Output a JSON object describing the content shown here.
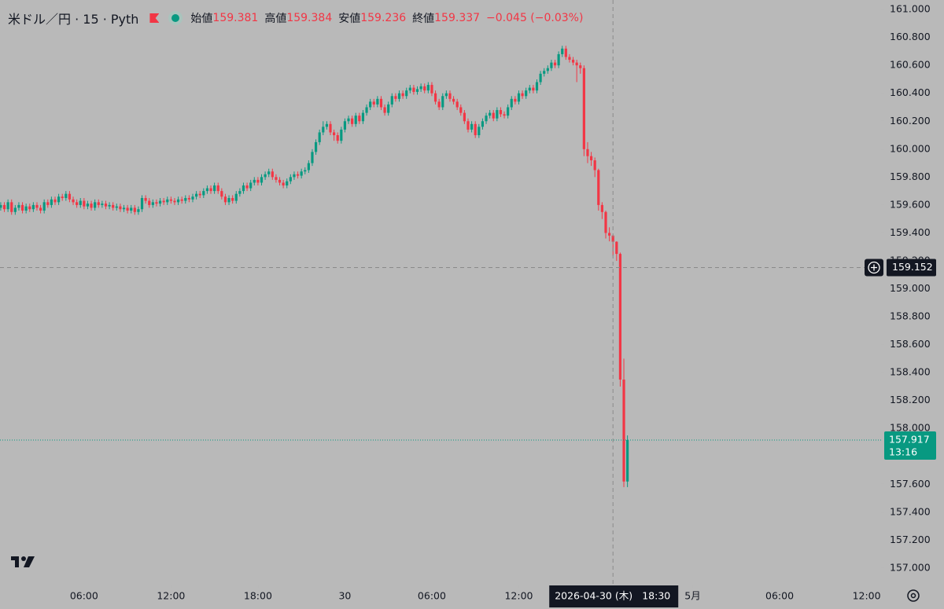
{
  "chart_data": {
    "type": "candlestick",
    "title": "米ドル／円 · 15 · Pyth",
    "ohlc_labels": {
      "open": "始値",
      "high": "高値",
      "low": "安値",
      "close": "終値"
    },
    "change": "−0.045 (−0.03%)",
    "up_color": "#089981",
    "down_color": "#f23645",
    "x": [
      0.25,
      0.5,
      0.75,
      1,
      1.25,
      1.5,
      1.75,
      2,
      2.25,
      2.5,
      2.75,
      3,
      3.25,
      3.5,
      3.75,
      4,
      4.25,
      4.5,
      4.75,
      5,
      5.25,
      5.5,
      5.75,
      6,
      6.25,
      6.5,
      6.75,
      7,
      7.25,
      7.5,
      7.75,
      8,
      8.25,
      8.5,
      8.75,
      9,
      9.25,
      9.5,
      9.75,
      10,
      10.25,
      10.5,
      10.75,
      11,
      11.25,
      11.5,
      11.75,
      12,
      12.25,
      12.5,
      12.75,
      13,
      13.25,
      13.5,
      13.75,
      14,
      14.25,
      14.5,
      14.75,
      15,
      15.25,
      15.5,
      15.75,
      16,
      16.25,
      16.5,
      16.75,
      17,
      17.25,
      17.5,
      17.75,
      18,
      18.25,
      18.5,
      18.75,
      19,
      19.25,
      19.5,
      19.75,
      20,
      20.25,
      20.5,
      20.75,
      21,
      21.25,
      21.5,
      21.75,
      22,
      22.25,
      22.5,
      22.75,
      23,
      23.25,
      23.5,
      23.75,
      24,
      24.25,
      24.5,
      24.75,
      25,
      25.25,
      25.5,
      25.75,
      26,
      26.25,
      26.5,
      26.75,
      27,
      27.25,
      27.5,
      27.75,
      28,
      28.25,
      28.5,
      28.75,
      29,
      29.25,
      29.5,
      29.75,
      30,
      30.25,
      30.5,
      30.75,
      31,
      31.25,
      31.5,
      31.75,
      32,
      32.25,
      32.5,
      32.75,
      33,
      33.25,
      33.5,
      33.75,
      34,
      34.25,
      34.5,
      34.75,
      35,
      35.25,
      35.5,
      35.75,
      36,
      36.25,
      36.5,
      36.75,
      37,
      37.25,
      37.5,
      37.75,
      38,
      38.25,
      38.5,
      38.75,
      39,
      39.25,
      39.5,
      39.75,
      40,
      40.25,
      40.5,
      40.75,
      41,
      41.25,
      41.5,
      41.75,
      42,
      42.25,
      42.5,
      42.75,
      43,
      43.25,
      43.5
    ],
    "open": [
      159.58,
      159.6,
      159.57,
      159.62,
      159.55,
      159.58,
      159.6,
      159.56,
      159.59,
      159.57,
      159.6,
      159.58,
      159.56,
      159.62,
      159.6,
      159.64,
      159.62,
      159.66,
      159.65,
      159.68,
      159.64,
      159.62,
      159.6,
      159.63,
      159.59,
      159.61,
      159.58,
      159.62,
      159.6,
      159.61,
      159.59,
      159.6,
      159.58,
      159.59,
      159.57,
      159.58,
      159.56,
      159.58,
      159.55,
      159.57,
      159.65,
      159.63,
      159.6,
      159.62,
      159.61,
      159.63,
      159.62,
      159.64,
      159.63,
      159.62,
      159.64,
      159.63,
      159.65,
      159.64,
      159.66,
      159.68,
      159.67,
      159.7,
      159.72,
      159.7,
      159.74,
      159.7,
      159.66,
      159.62,
      159.65,
      159.63,
      159.68,
      159.7,
      159.74,
      159.72,
      159.76,
      159.78,
      159.76,
      159.8,
      159.82,
      159.84,
      159.8,
      159.78,
      159.76,
      159.74,
      159.77,
      159.8,
      159.82,
      159.81,
      159.84,
      159.85,
      159.9,
      159.98,
      160.05,
      160.12,
      160.16,
      160.18,
      160.12,
      160.1,
      160.06,
      160.14,
      160.2,
      160.22,
      160.18,
      160.24,
      160.2,
      160.26,
      160.3,
      160.34,
      160.32,
      160.36,
      160.3,
      160.26,
      160.32,
      160.38,
      160.36,
      160.4,
      160.38,
      160.42,
      160.44,
      160.41,
      160.43,
      160.45,
      160.42,
      160.46,
      160.4,
      160.34,
      160.3,
      160.38,
      160.4,
      160.36,
      160.34,
      160.3,
      160.26,
      160.2,
      160.14,
      160.18,
      160.1,
      160.16,
      160.2,
      160.24,
      160.26,
      160.22,
      160.28,
      160.25,
      160.24,
      160.3,
      160.36,
      160.34,
      160.4,
      160.38,
      160.42,
      160.44,
      160.42,
      160.48,
      160.54,
      160.56,
      160.58,
      160.62,
      160.6,
      160.68,
      160.72,
      160.66,
      160.64,
      160.62,
      160.6,
      160.58,
      160.0,
      159.95,
      159.92,
      159.85,
      159.6,
      159.55,
      159.4,
      159.381,
      159.337,
      159.25,
      158.35,
      157.62
    ],
    "high": [
      159.62,
      159.62,
      159.64,
      159.64,
      159.6,
      159.62,
      159.62,
      159.61,
      159.61,
      159.62,
      159.62,
      159.6,
      159.64,
      159.64,
      159.66,
      159.66,
      159.68,
      159.68,
      159.7,
      159.7,
      159.66,
      159.64,
      159.65,
      159.65,
      159.63,
      159.63,
      159.64,
      159.64,
      159.63,
      159.63,
      159.62,
      159.62,
      159.61,
      159.61,
      159.6,
      159.6,
      159.6,
      159.6,
      159.59,
      159.67,
      159.67,
      159.65,
      159.64,
      159.64,
      159.65,
      159.65,
      159.66,
      159.66,
      159.65,
      159.66,
      159.66,
      159.67,
      159.67,
      159.68,
      159.7,
      159.7,
      159.72,
      159.74,
      159.74,
      159.76,
      159.76,
      159.72,
      159.68,
      159.67,
      159.67,
      159.7,
      159.72,
      159.76,
      159.76,
      159.78,
      159.8,
      159.8,
      159.82,
      159.84,
      159.86,
      159.86,
      159.82,
      159.8,
      159.78,
      159.79,
      159.82,
      159.84,
      159.84,
      159.86,
      159.87,
      159.92,
      160.0,
      160.07,
      160.14,
      160.2,
      160.2,
      160.2,
      160.14,
      160.12,
      160.16,
      160.22,
      160.24,
      160.24,
      160.26,
      160.26,
      160.28,
      160.32,
      160.36,
      160.36,
      160.38,
      160.38,
      160.32,
      160.34,
      160.4,
      160.4,
      160.42,
      160.42,
      160.44,
      160.46,
      160.46,
      160.45,
      160.47,
      160.47,
      160.48,
      160.48,
      160.42,
      160.36,
      160.4,
      160.42,
      160.42,
      160.38,
      160.36,
      160.32,
      160.28,
      160.22,
      160.2,
      160.2,
      160.18,
      160.22,
      160.26,
      160.28,
      160.28,
      160.3,
      160.3,
      160.27,
      160.32,
      160.38,
      160.38,
      160.42,
      160.42,
      160.44,
      160.46,
      160.46,
      160.5,
      160.56,
      160.58,
      160.6,
      160.64,
      160.64,
      160.7,
      160.74,
      160.74,
      160.68,
      160.66,
      160.64,
      160.62,
      160.6,
      160.05,
      159.98,
      159.94,
      159.86,
      159.62,
      159.56,
      159.44,
      159.384,
      159.34,
      159.26,
      158.5,
      157.95
    ],
    "low": [
      159.56,
      159.55,
      159.55,
      159.53,
      159.53,
      159.56,
      159.54,
      159.54,
      159.55,
      159.55,
      159.56,
      159.54,
      159.54,
      159.58,
      159.58,
      159.6,
      159.6,
      159.63,
      159.63,
      159.62,
      159.6,
      159.58,
      159.58,
      159.57,
      159.57,
      159.56,
      159.56,
      159.58,
      159.58,
      159.57,
      159.57,
      159.56,
      159.56,
      159.55,
      159.55,
      159.54,
      159.54,
      159.53,
      159.53,
      159.55,
      159.61,
      159.58,
      159.58,
      159.59,
      159.59,
      159.6,
      159.6,
      159.61,
      159.6,
      159.6,
      159.61,
      159.61,
      159.62,
      159.62,
      159.64,
      159.65,
      159.65,
      159.68,
      159.68,
      159.68,
      159.68,
      159.64,
      159.6,
      159.6,
      159.61,
      159.61,
      159.66,
      159.68,
      159.7,
      159.7,
      159.74,
      159.74,
      159.74,
      159.78,
      159.8,
      159.78,
      159.76,
      159.74,
      159.72,
      159.72,
      159.75,
      159.78,
      159.79,
      159.79,
      159.82,
      159.83,
      159.88,
      159.96,
      160.03,
      160.1,
      160.14,
      160.1,
      160.06,
      160.04,
      160.04,
      160.12,
      160.18,
      160.16,
      160.16,
      160.18,
      160.18,
      160.24,
      160.28,
      160.3,
      160.3,
      160.28,
      160.24,
      160.24,
      160.3,
      160.34,
      160.34,
      160.36,
      160.36,
      160.4,
      160.39,
      160.39,
      160.41,
      160.4,
      160.4,
      160.38,
      160.32,
      160.28,
      160.28,
      160.36,
      160.34,
      160.32,
      160.28,
      160.24,
      160.18,
      160.12,
      160.12,
      160.08,
      160.08,
      160.14,
      160.18,
      160.22,
      160.2,
      160.2,
      160.23,
      160.22,
      160.22,
      160.28,
      160.32,
      160.32,
      160.36,
      160.36,
      160.4,
      160.4,
      160.4,
      160.46,
      160.52,
      160.54,
      160.56,
      160.58,
      160.58,
      160.66,
      160.64,
      160.62,
      160.6,
      160.48,
      160.54,
      159.95,
      159.9,
      159.88,
      159.8,
      159.56,
      159.5,
      159.36,
      159.34,
      159.236,
      159.2,
      158.3,
      157.58,
      157.58
    ],
    "close": [
      159.6,
      159.57,
      159.62,
      159.55,
      159.58,
      159.6,
      159.56,
      159.59,
      159.57,
      159.6,
      159.58,
      159.56,
      159.62,
      159.6,
      159.64,
      159.62,
      159.66,
      159.65,
      159.68,
      159.64,
      159.62,
      159.6,
      159.63,
      159.59,
      159.61,
      159.58,
      159.62,
      159.6,
      159.61,
      159.59,
      159.6,
      159.58,
      159.59,
      159.57,
      159.58,
      159.56,
      159.58,
      159.55,
      159.57,
      159.65,
      159.63,
      159.6,
      159.62,
      159.61,
      159.63,
      159.62,
      159.64,
      159.63,
      159.62,
      159.64,
      159.63,
      159.65,
      159.64,
      159.66,
      159.68,
      159.67,
      159.7,
      159.72,
      159.7,
      159.74,
      159.7,
      159.66,
      159.62,
      159.65,
      159.63,
      159.68,
      159.7,
      159.74,
      159.72,
      159.76,
      159.78,
      159.76,
      159.8,
      159.82,
      159.84,
      159.8,
      159.78,
      159.76,
      159.74,
      159.77,
      159.8,
      159.82,
      159.81,
      159.84,
      159.85,
      159.9,
      159.98,
      160.05,
      160.12,
      160.16,
      160.18,
      160.12,
      160.1,
      160.06,
      160.14,
      160.2,
      160.22,
      160.18,
      160.24,
      160.2,
      160.26,
      160.3,
      160.34,
      160.32,
      160.36,
      160.3,
      160.26,
      160.32,
      160.38,
      160.36,
      160.4,
      160.38,
      160.42,
      160.44,
      160.41,
      160.43,
      160.45,
      160.42,
      160.46,
      160.4,
      160.34,
      160.3,
      160.38,
      160.4,
      160.36,
      160.34,
      160.3,
      160.26,
      160.2,
      160.14,
      160.18,
      160.1,
      160.16,
      160.2,
      160.24,
      160.26,
      160.22,
      160.28,
      160.25,
      160.24,
      160.3,
      160.36,
      160.34,
      160.4,
      160.38,
      160.42,
      160.44,
      160.42,
      160.48,
      160.54,
      160.56,
      160.58,
      160.62,
      160.6,
      160.68,
      160.72,
      160.66,
      160.64,
      160.62,
      160.6,
      160.58,
      160.0,
      159.95,
      159.92,
      159.85,
      159.6,
      159.55,
      159.4,
      159.381,
      159.337,
      159.25,
      158.35,
      157.62,
      157.917
    ],
    "xlim": [
      0.2,
      61.0
    ],
    "xticks": [
      {
        "value": 6,
        "label": "06:00"
      },
      {
        "value": 12,
        "label": "12:00"
      },
      {
        "value": 18,
        "label": "18:00"
      },
      {
        "value": 24,
        "label": "30"
      },
      {
        "value": 30,
        "label": "06:00"
      },
      {
        "value": 36,
        "label": "12:00"
      },
      {
        "value": 48,
        "label": "5月"
      },
      {
        "value": 54,
        "label": "06:00"
      },
      {
        "value": 60,
        "label": "12:00"
      }
    ],
    "ylim": [
      156.876,
      161.068
    ],
    "yticks": [
      {
        "value": 157.0,
        "label": "157.000"
      },
      {
        "value": 157.2,
        "label": "157.200"
      },
      {
        "value": 157.4,
        "label": "157.400"
      },
      {
        "value": 157.6,
        "label": "157.600"
      },
      {
        "value": 157.8,
        "label": "157.800"
      },
      {
        "value": 158.0,
        "label": "158.000"
      },
      {
        "value": 158.2,
        "label": "158.200"
      },
      {
        "value": 158.4,
        "label": "158.400"
      },
      {
        "value": 158.6,
        "label": "158.600"
      },
      {
        "value": 158.8,
        "label": "158.800"
      },
      {
        "value": 159.0,
        "label": "159.000"
      },
      {
        "value": 159.2,
        "label": "159.200"
      },
      {
        "value": 159.4,
        "label": "159.400"
      },
      {
        "value": 159.6,
        "label": "159.600"
      },
      {
        "value": 159.8,
        "label": "159.800"
      },
      {
        "value": 160.0,
        "label": "160.000"
      },
      {
        "value": 160.2,
        "label": "160.200"
      },
      {
        "value": 160.4,
        "label": "160.400"
      },
      {
        "value": 160.6,
        "label": "160.600"
      },
      {
        "value": 160.8,
        "label": "160.800"
      },
      {
        "value": 161.0,
        "label": "161.000"
      }
    ],
    "crosshair": {
      "x": 42.5,
      "price": 159.152,
      "date": "2026-04-30 (木)",
      "time": "18:30"
    },
    "countdown": "13:16"
  }
}
